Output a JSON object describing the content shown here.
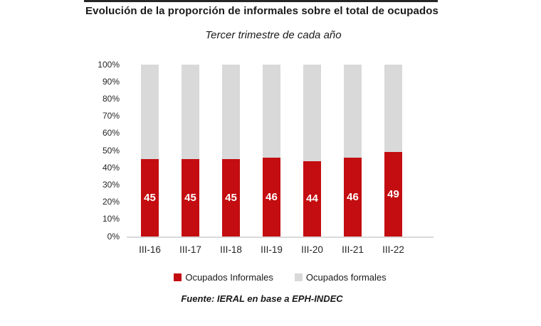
{
  "title": "Evolución de la proporción de informales sobre el total de ocupados",
  "subtitle": "Tercer trimestre de cada año",
  "source": "Fuente: IERAL en base a EPH-INDEC",
  "colors": {
    "informal": "#C30D10",
    "formal": "#D9D9D9",
    "axis_line": "#DADADA",
    "background": "#FFFFFF",
    "value_label": "#FFFFFF"
  },
  "legend": [
    {
      "label": "Ocupados Informales",
      "color": "#C30D10"
    },
    {
      "label": "Ocupados formales",
      "color": "#D9D9D9"
    }
  ],
  "chart_data": {
    "type": "bar",
    "stacked": true,
    "title": "Evolución de la proporción de informales sobre el total de ocupados",
    "subtitle": "Tercer trimestre de cada año",
    "categories": [
      "III-16",
      "III-17",
      "III-18",
      "III-19",
      "III-20",
      "III-21",
      "III-22"
    ],
    "series": [
      {
        "name": "Ocupados Informales",
        "values": [
          45,
          45,
          45,
          46,
          44,
          46,
          49
        ],
        "color": "#C30D10"
      },
      {
        "name": "Ocupados formales",
        "values": [
          55,
          55,
          55,
          54,
          56,
          54,
          51
        ],
        "color": "#D9D9D9"
      }
    ],
    "data_labels_series": "Ocupados Informales",
    "data_labels": [
      45,
      45,
      45,
      46,
      44,
      46,
      49
    ],
    "xlabel": "",
    "ylabel": "",
    "ylim": [
      0,
      100
    ],
    "yticks": [
      "100%",
      "90%",
      "80%",
      "70%",
      "60%",
      "50%",
      "40%",
      "30%",
      "20%",
      "10%",
      "0%"
    ],
    "grid": false,
    "legend_position": "bottom"
  }
}
